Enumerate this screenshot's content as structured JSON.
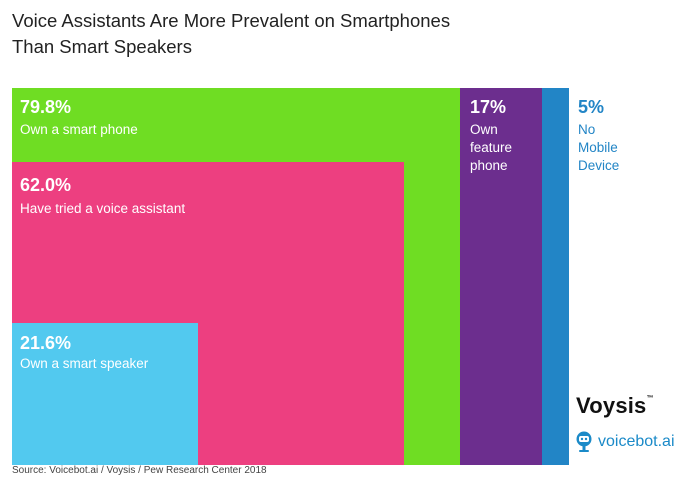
{
  "title": "Voice Assistants Are More Prevalent on Smartphones Than Smart Speakers",
  "chart_data": {
    "type": "treemap",
    "title": "Voice Assistants Are More Prevalent on Smartphones Than Smart Speakers",
    "items": [
      {
        "value": 79.8,
        "value_label": "79.8%",
        "label": "Own a smart phone",
        "color": "#6fdd23",
        "parent": null
      },
      {
        "value": 62.0,
        "value_label": "62.0%",
        "label": "Have tried a voice assistant",
        "color": "#ed3f80",
        "parent": "Own a smart phone"
      },
      {
        "value": 21.6,
        "value_label": "21.6%",
        "label": "Own a smart speaker",
        "color": "#52c9ef",
        "parent": "Have tried a voice assistant"
      },
      {
        "value": 17,
        "value_label": "17%",
        "label": "Own feature phone",
        "label_lines": [
          "Own",
          "feature",
          "phone"
        ],
        "color": "#6c2e8e",
        "parent": null
      },
      {
        "value": 5,
        "value_label": "5%",
        "label": "No Mobile Device",
        "label_lines": [
          "No",
          "Mobile",
          "Device"
        ],
        "color": "#2285c6",
        "parent": null
      }
    ]
  },
  "logos": {
    "voysis": "Voysis",
    "voysis_mark": "™",
    "voicebot": "voicebot.ai"
  },
  "source": "Source: Voicebot.ai / Voysis / Pew Research Center 2018",
  "icons": {
    "voicebot": "robot-microphone-icon"
  }
}
